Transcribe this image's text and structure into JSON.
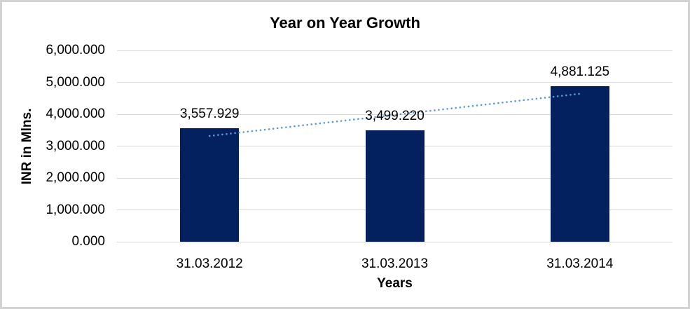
{
  "chart": {
    "title": "Year on Year Growth",
    "x_axis_title": "Years",
    "y_axis_title": "INR in Mlns."
  },
  "chart_data": {
    "type": "bar",
    "title": "Year on Year Growth",
    "xlabel": "Years",
    "ylabel": "INR in Mlns.",
    "categories": [
      "31.03.2012",
      "31.03.2013",
      "31.03.2014"
    ],
    "values": [
      3557.929,
      3499.22,
      4881.125
    ],
    "data_labels": [
      "3,557.929",
      "3,499.220",
      "4,881.125"
    ],
    "ylim": [
      0,
      6000
    ],
    "ytick_values": [
      0,
      1000,
      2000,
      3000,
      4000,
      5000,
      6000
    ],
    "ytick_labels": [
      "0.000",
      "1,000.000",
      "2,000.000",
      "3,000.000",
      "4,000.000",
      "5,000.000",
      "6,000.000"
    ],
    "grid": true,
    "legend": false,
    "bar_color": "#02215E",
    "gridline_color": "#D9D9D9",
    "trendline": {
      "type": "linear",
      "style": "dotted",
      "color": "#5B9BD5",
      "start_value": 3317.83,
      "end_value": 4641.02
    }
  }
}
